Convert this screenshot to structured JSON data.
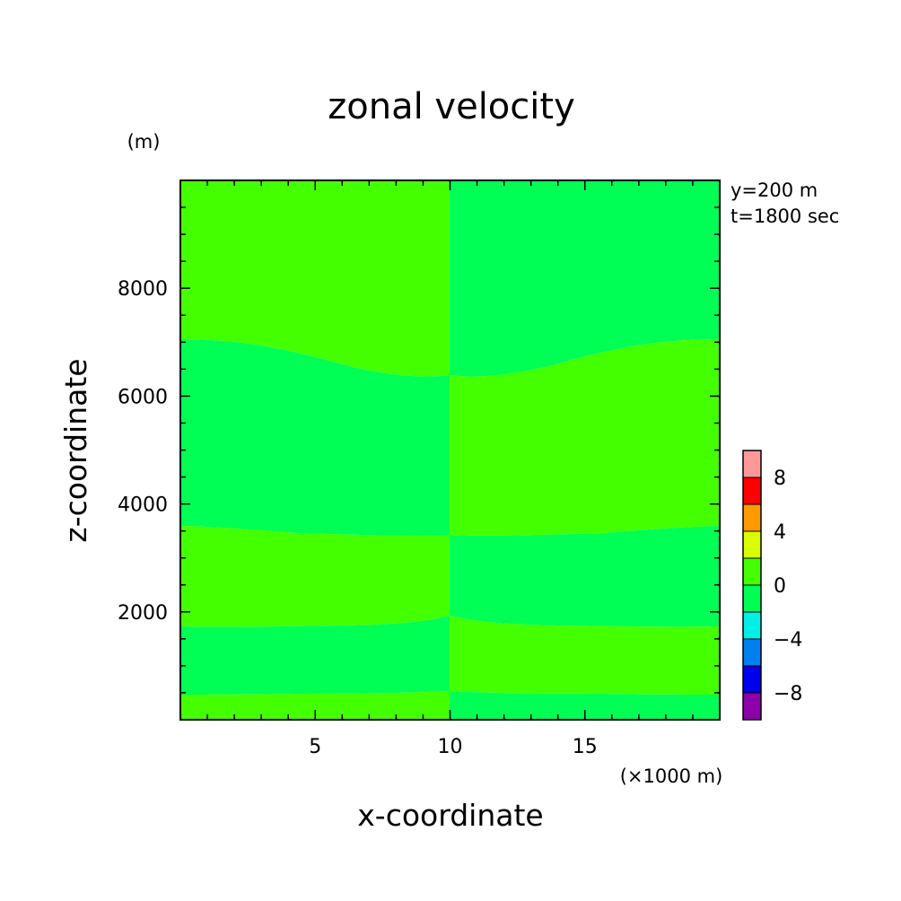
{
  "chart_data": {
    "type": "heatmap",
    "title": "zonal velocity",
    "xlabel": "x-coordinate",
    "ylabel": "z-coordinate",
    "x_unit": "(×1000 m)",
    "y_unit": "(m)",
    "xlim": [
      0,
      20
    ],
    "ylim": [
      0,
      10000
    ],
    "x_ticks": [
      5,
      10,
      15
    ],
    "x_tick_labels": [
      "5",
      "10",
      "15"
    ],
    "y_ticks": [
      2000,
      4000,
      6000,
      8000
    ],
    "y_tick_labels": [
      "2000",
      "4000",
      "6000",
      "8000"
    ],
    "annotations": [
      "y=200 m",
      "t=1800 sec"
    ],
    "colorbar": {
      "levels": [
        -10,
        -8,
        -6,
        -4,
        -2,
        0,
        2,
        4,
        6,
        8,
        10
      ],
      "colors": [
        "#8b00a8",
        "#0000ee",
        "#0080f0",
        "#00f0e6",
        "#00ff55",
        "#44ff00",
        "#d8ff00",
        "#ff9900",
        "#ff0000",
        "#ff9999"
      ],
      "tick_labels": [
        "8",
        "4",
        "0",
        "-4",
        "-8"
      ],
      "tick_values": [
        8,
        4,
        0,
        -4,
        -8
      ]
    },
    "regions": [
      {
        "side": "left",
        "z_range": [
          7000,
          10000
        ],
        "class": "0 to 2"
      },
      {
        "side": "left",
        "z_range": [
          3500,
          7000
        ],
        "class": "-2 to 0"
      },
      {
        "side": "left",
        "z_range": [
          1800,
          3500
        ],
        "class": "0 to 2"
      },
      {
        "side": "left",
        "z_range": [
          500,
          1800
        ],
        "class": "-2 to 0"
      },
      {
        "side": "left",
        "z_range": [
          0,
          500
        ],
        "class": "0 to 2"
      },
      {
        "side": "right",
        "z_range": [
          7000,
          10000
        ],
        "class": "-2 to 0"
      },
      {
        "side": "right",
        "z_range": [
          3500,
          7000
        ],
        "class": "0 to 2"
      },
      {
        "side": "right",
        "z_range": [
          1800,
          3500
        ],
        "class": "-2 to 0"
      },
      {
        "side": "right",
        "z_range": [
          500,
          1800
        ],
        "class": "0 to 2"
      },
      {
        "side": "right",
        "z_range": [
          0,
          500
        ],
        "class": "-2 to 0"
      }
    ],
    "grid": false,
    "legend": "right"
  }
}
